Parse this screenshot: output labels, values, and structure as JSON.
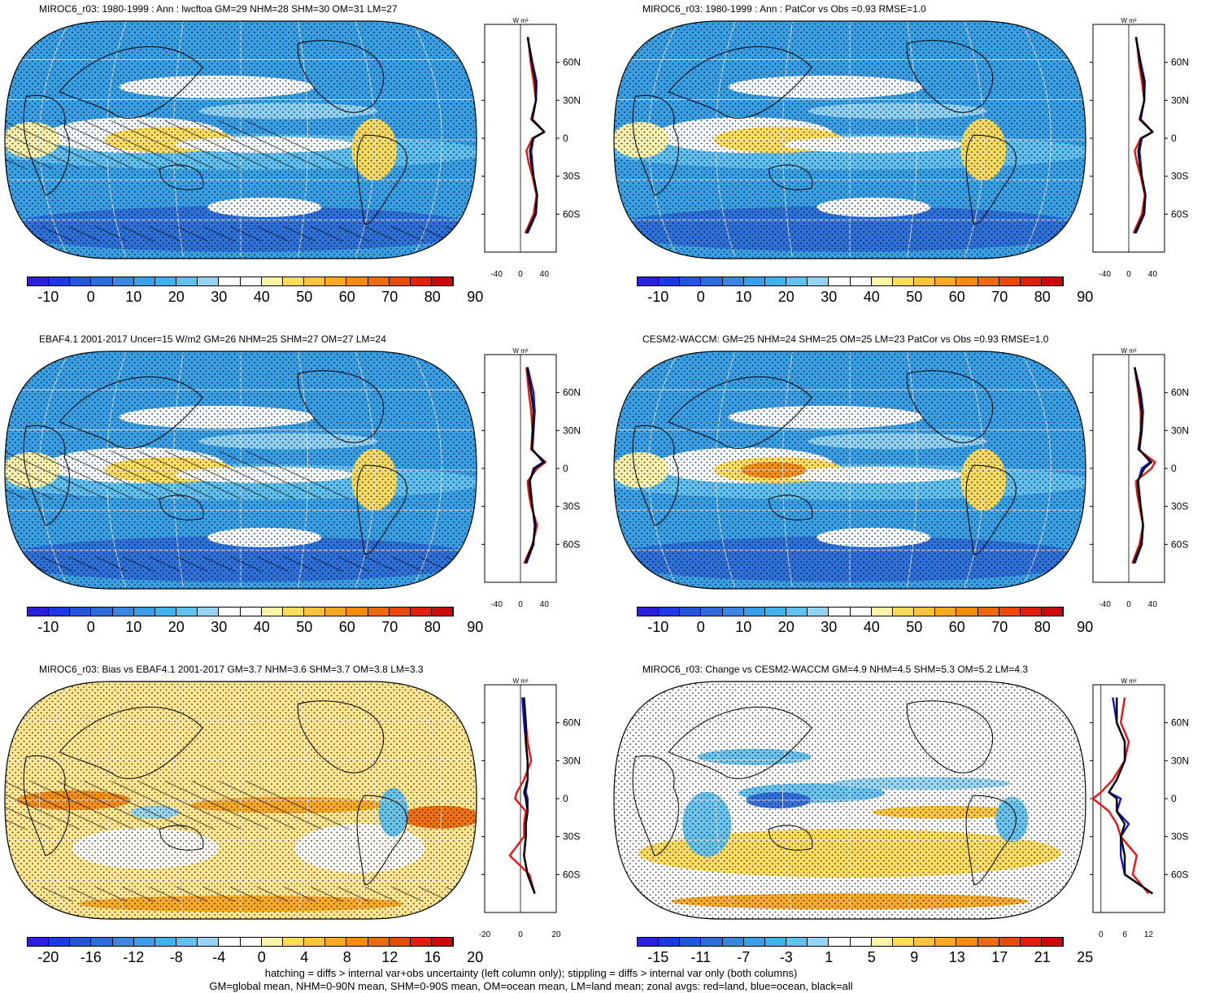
{
  "colorbar_colors_main": [
    "#2a21d8",
    "#1b3ae6",
    "#2456dc",
    "#2e6cdc",
    "#3a86e0",
    "#3a9ee8",
    "#40b2ee",
    "#62c2ef",
    "#94d4f2",
    "#ffffff",
    "#ffffff",
    "#fff3a8",
    "#fddc5a",
    "#fcc43c",
    "#f9a821",
    "#f48a10",
    "#ee6a0a",
    "#e84a0a",
    "#e0200c",
    "#cc0a0a"
  ],
  "colorbar_colors_bias": [
    "#2a21d8",
    "#1b3ae6",
    "#2456dc",
    "#2e6cdc",
    "#3a86e0",
    "#3a9ee8",
    "#40b2ee",
    "#62c2ef",
    "#94d4f2",
    "#ffffff",
    "#ffffff",
    "#fff3a8",
    "#fddc5a",
    "#fcc43c",
    "#f9a821",
    "#f48a10",
    "#ee6a0a",
    "#e84a0a",
    "#e0200c",
    "#cc0a0a"
  ],
  "zonal_line_colors": {
    "land": "#ee1111",
    "ocean": "#1111dd",
    "all": "#000000"
  },
  "zonal_units": "W m²",
  "lat_labels": [
    "60N",
    "30N",
    "0",
    "30S",
    "60S"
  ],
  "footer": {
    "line1": "hatching = diffs > internal var+obs uncertainty (left column only); stippling = diffs > internal var only (both columns)",
    "line2": "GM=global mean, NHM=0-90N mean, SHM=0-90S mean, OM=ocean mean, LM=land mean; zonal avgs: red=land, blue=ocean, black=all"
  },
  "panels": [
    {
      "title": "MIROC6_r03: 1980-1999 : Ann : lwcftoa GM=29 NHM=28 SHM=30 OM=31 LM=27",
      "cb_labels": [
        "-10",
        "0",
        "10",
        "20",
        "30",
        "40",
        "50",
        "60",
        "70",
        "80",
        "90"
      ],
      "zonal_ticks": [
        "-40",
        "0",
        "40"
      ]
    },
    {
      "title": "MIROC6_r03: 1980-1999 : Ann : PatCor vs Obs =0.93 RMSE=1.0",
      "cb_labels": [
        "-10",
        "0",
        "10",
        "20",
        "30",
        "40",
        "50",
        "60",
        "70",
        "80",
        "90"
      ],
      "zonal_ticks": [
        "-40",
        "0",
        "40"
      ]
    },
    {
      "title": "EBAF4.1 2001-2017 Uncer=15 W/m2 GM=26 NHM=25 SHM=27 OM=27 LM=24",
      "cb_labels": [
        "-10",
        "0",
        "10",
        "20",
        "30",
        "40",
        "50",
        "60",
        "70",
        "80",
        "90"
      ],
      "zonal_ticks": [
        "-40",
        "0",
        "40"
      ]
    },
    {
      "title": "CESM2-WACCM: GM=25 NHM=24 SHM=25 OM=25 LM=23 PatCor vs Obs =0.93 RMSE=1.0",
      "cb_labels": [
        "-10",
        "0",
        "10",
        "20",
        "30",
        "40",
        "50",
        "60",
        "70",
        "80",
        "90"
      ],
      "zonal_ticks": [
        "-40",
        "0",
        "40"
      ]
    },
    {
      "title": "MIROC6_r03: Bias vs EBAF4.1 2001-2017 GM=3.7 NHM=3.6 SHM=3.7 OM=3.8 LM=3.3",
      "cb_labels": [
        "-20",
        "-16",
        "-12",
        "-8",
        "-4",
        "0",
        "4",
        "8",
        "12",
        "16",
        "20"
      ],
      "zonal_ticks": [
        "-20",
        "0",
        "20"
      ]
    },
    {
      "title": "MIROC6_r03: Change vs CESM2-WACCM GM=4.9 NHM=4.5 SHM=5.3 OM=5.2 LM=4.3",
      "cb_labels": [
        "-15",
        "-11",
        "-7",
        "-3",
        "1",
        "5",
        "9",
        "13",
        "17",
        "21",
        "25"
      ],
      "zonal_ticks": [
        "0",
        "6",
        "12"
      ]
    }
  ],
  "chart_data": [
    {
      "type": "heatmap",
      "title": "MIROC6_r03: 1980-1999 : Ann : lwcftoa GM=29 NHM=28 SHM=30 OM=31 LM=27",
      "projection": "robinson",
      "colorbar_range": [
        -15,
        95
      ],
      "stats": {
        "GM": 29,
        "NHM": 28,
        "SHM": 30,
        "OM": 31,
        "LM": 27
      },
      "zonal_mean": {
        "lat": [
          80,
          60,
          45,
          30,
          15,
          5,
          0,
          -10,
          -20,
          -30,
          -45,
          -60,
          -75
        ],
        "land": [
          13,
          17,
          22,
          26,
          18,
          40,
          20,
          10,
          14,
          20,
          27,
          22,
          8
        ],
        "ocean": [
          12,
          20,
          27,
          26,
          20,
          40,
          22,
          18,
          20,
          22,
          28,
          26,
          12
        ],
        "all": [
          12,
          19,
          25,
          26,
          19,
          40,
          21,
          16,
          18,
          22,
          28,
          25,
          10
        ]
      }
    },
    {
      "type": "heatmap",
      "title": "MIROC6_r03: 1980-1999 : Ann : PatCor vs Obs =0.93 RMSE=1.0",
      "projection": "robinson",
      "colorbar_range": [
        -15,
        95
      ],
      "stats": {
        "PatCor": 0.93,
        "RMSE": 1.0
      },
      "zonal_mean": {
        "lat": [
          80,
          60,
          45,
          30,
          15,
          5,
          0,
          -10,
          -20,
          -30,
          -45,
          -60,
          -75
        ],
        "land": [
          13,
          17,
          22,
          26,
          18,
          40,
          20,
          10,
          14,
          20,
          27,
          22,
          8
        ],
        "ocean": [
          12,
          20,
          27,
          26,
          20,
          40,
          22,
          18,
          20,
          22,
          28,
          26,
          12
        ],
        "all": [
          12,
          19,
          25,
          26,
          19,
          40,
          21,
          16,
          18,
          22,
          28,
          25,
          10
        ]
      }
    },
    {
      "type": "heatmap",
      "title": "EBAF4.1 2001-2017 Uncer=15 W/m2 GM=26 NHM=25 SHM=27 OM=27 LM=24",
      "projection": "robinson",
      "colorbar_range": [
        -15,
        95
      ],
      "stats": {
        "Uncer": 15,
        "GM": 26,
        "NHM": 25,
        "SHM": 27,
        "OM": 27,
        "LM": 24
      },
      "zonal_mean": {
        "lat": [
          80,
          60,
          45,
          30,
          15,
          5,
          0,
          -10,
          -20,
          -30,
          -45,
          -60,
          -75
        ],
        "land": [
          10,
          14,
          18,
          20,
          18,
          42,
          28,
          12,
          14,
          18,
          28,
          20,
          6
        ],
        "ocean": [
          12,
          22,
          24,
          22,
          20,
          38,
          22,
          16,
          18,
          20,
          24,
          22,
          10
        ],
        "all": [
          11,
          18,
          22,
          21,
          19,
          40,
          24,
          15,
          17,
          20,
          25,
          21,
          8
        ]
      }
    },
    {
      "type": "heatmap",
      "title": "CESM2-WACCM: GM=25 NHM=24 SHM=25 OM=25 LM=23 PatCor vs Obs =0.93 RMSE=1.0",
      "projection": "robinson",
      "colorbar_range": [
        -15,
        95
      ],
      "stats": {
        "GM": 25,
        "NHM": 24,
        "SHM": 25,
        "OM": 25,
        "LM": 23,
        "PatCor": 0.93,
        "RMSE": 1.0
      },
      "zonal_mean": {
        "lat": [
          80,
          60,
          45,
          30,
          15,
          5,
          0,
          -10,
          -20,
          -30,
          -45,
          -60,
          -75
        ],
        "land": [
          10,
          16,
          20,
          20,
          16,
          44,
          38,
          12,
          14,
          18,
          24,
          18,
          6
        ],
        "ocean": [
          10,
          20,
          24,
          22,
          18,
          36,
          22,
          16,
          18,
          20,
          24,
          22,
          10
        ],
        "all": [
          10,
          18,
          22,
          21,
          17,
          38,
          26,
          15,
          17,
          20,
          24,
          21,
          8
        ]
      }
    },
    {
      "type": "heatmap",
      "title": "MIROC6_r03: Bias vs EBAF4.1 2001-2017 GM=3.7 NHM=3.6 SHM=3.7 OM=3.8 LM=3.3",
      "projection": "robinson",
      "colorbar_range": [
        -22,
        22
      ],
      "stats": {
        "GM": 3.7,
        "NHM": 3.6,
        "SHM": 3.7,
        "OM": 3.8,
        "LM": 3.3
      },
      "zonal_mean": {
        "lat": [
          80,
          60,
          45,
          30,
          15,
          5,
          0,
          -10,
          -20,
          -30,
          -45,
          -60,
          -75
        ],
        "land": [
          2,
          3,
          4,
          6,
          2,
          -2,
          -3,
          3,
          2,
          2,
          -6,
          5,
          8
        ],
        "ocean": [
          1,
          2,
          3,
          4,
          4,
          3,
          4,
          4,
          3,
          3,
          2,
          4,
          8
        ],
        "all": [
          2,
          3,
          3,
          4,
          4,
          2,
          3,
          4,
          3,
          3,
          2,
          4,
          8
        ]
      }
    },
    {
      "type": "heatmap",
      "title": "MIROC6_r03: Change vs CESM2-WACCM GM=4.9 NHM=4.5 SHM=5.3 OM=5.2 LM=4.3",
      "projection": "robinson",
      "colorbar_range": [
        -17,
        27
      ],
      "stats": {
        "GM": 4.9,
        "NHM": 4.5,
        "SHM": 5.3,
        "OM": 5.2,
        "LM": 4.3
      },
      "zonal_mean": {
        "lat": [
          80,
          60,
          45,
          30,
          15,
          5,
          0,
          -10,
          -20,
          -30,
          -45,
          -60,
          -75
        ],
        "land": [
          6,
          5,
          7,
          6,
          3,
          0,
          -2,
          2,
          4,
          5,
          9,
          8,
          12
        ],
        "ocean": [
          3,
          4,
          6,
          6,
          4,
          2,
          5,
          4,
          7,
          5,
          5,
          6,
          13
        ],
        "all": [
          4,
          4,
          6,
          6,
          4,
          2,
          4,
          4,
          6,
          5,
          6,
          6,
          13
        ]
      }
    }
  ]
}
